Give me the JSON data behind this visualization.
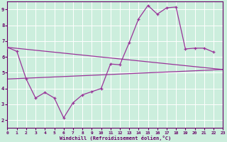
{
  "background_color": "#cceedd",
  "grid_color": "#ffffff",
  "line_color": "#993399",
  "xlabel": "Windchill (Refroidissement éolien,°C)",
  "xlim": [
    0,
    23
  ],
  "ylim": [
    1.5,
    9.5
  ],
  "yticks": [
    2,
    3,
    4,
    5,
    6,
    7,
    8,
    9
  ],
  "line_main": {
    "x": [
      0,
      1,
      2,
      3,
      4,
      5,
      6,
      7,
      8,
      9,
      10,
      11,
      12,
      13,
      14,
      15,
      16,
      17,
      18,
      19,
      20,
      21,
      22
    ],
    "y": [
      6.6,
      6.35,
      4.6,
      3.4,
      3.75,
      3.4,
      2.15,
      3.1,
      3.6,
      3.8,
      4.0,
      5.55,
      5.5,
      6.9,
      8.4,
      9.25,
      8.7,
      9.1,
      9.15,
      6.5,
      6.55,
      6.55,
      6.3
    ]
  },
  "line_diag1": {
    "x": [
      0,
      23
    ],
    "y": [
      6.6,
      5.2
    ]
  },
  "line_diag2": {
    "x": [
      0,
      23
    ],
    "y": [
      4.6,
      5.2
    ]
  }
}
